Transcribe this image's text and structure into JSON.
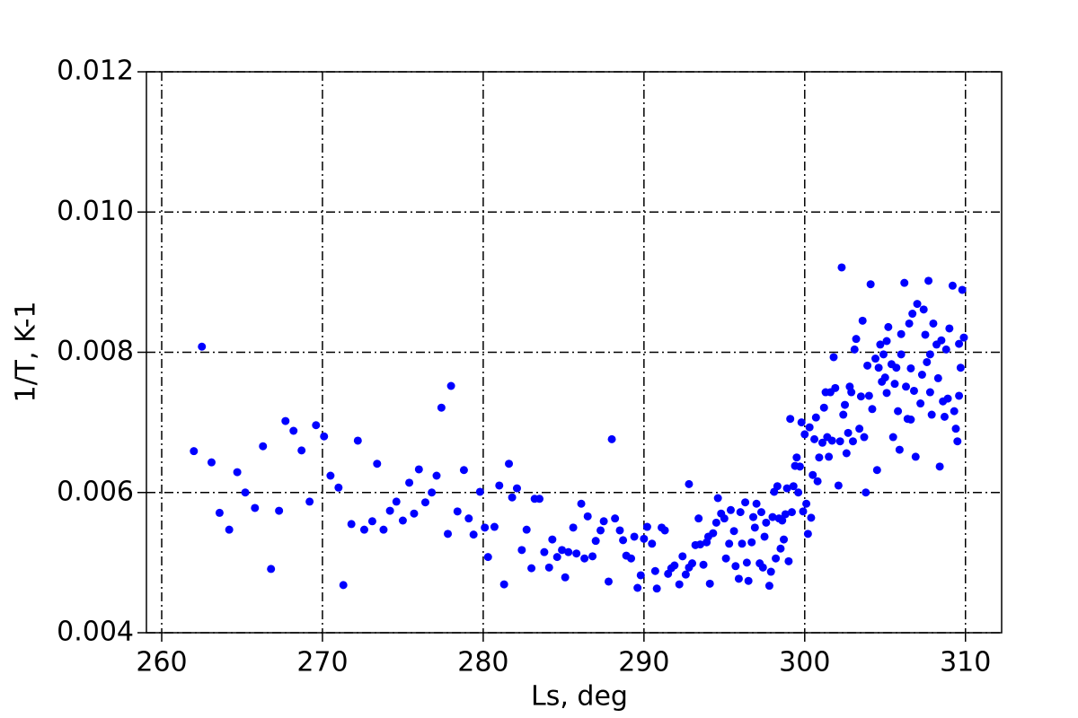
{
  "chart_data": {
    "type": "scatter",
    "xlabel": "Ls, deg",
    "ylabel": "1/T, K-1",
    "color": "#0000ff",
    "grid": true,
    "xlim": [
      259.05,
      312.25
    ],
    "ylim": [
      0.004,
      0.012
    ],
    "xticks": [
      260,
      270,
      280,
      290,
      300,
      310
    ],
    "yticks": [
      0.004,
      0.006,
      0.008,
      {
        "value": 0.01,
        "label": "0.010"
      },
      0.012
    ],
    "x": [
      262.0,
      262.5,
      263.1,
      263.6,
      264.2,
      264.7,
      265.2,
      265.8,
      266.3,
      266.8,
      267.3,
      267.7,
      268.2,
      268.7,
      269.2,
      269.6,
      270.1,
      270.5,
      271.0,
      271.3,
      271.8,
      272.2,
      272.6,
      273.1,
      273.4,
      273.8,
      274.2,
      274.6,
      275.0,
      275.4,
      275.7,
      276.0,
      276.4,
      276.8,
      277.1,
      277.4,
      277.8,
      278.0,
      278.4,
      278.8,
      279.1,
      279.4,
      279.8,
      280.1,
      280.3,
      280.7,
      281.0,
      281.3,
      281.6,
      281.8,
      282.1,
      282.4,
      282.7,
      283.0,
      283.2,
      283.5,
      283.8,
      284.1,
      284.3,
      284.6,
      284.9,
      285.1,
      285.3,
      285.6,
      285.8,
      286.1,
      286.3,
      286.5,
      286.8,
      287.0,
      287.3,
      287.5,
      287.8,
      288.0,
      288.2,
      288.5,
      288.7,
      288.9,
      289.2,
      289.4,
      289.6,
      289.8,
      290.0,
      290.2,
      290.5,
      290.7,
      290.8,
      291.1,
      291.3,
      291.5,
      291.7,
      291.9,
      292.2,
      292.4,
      292.6,
      292.8,
      292.8,
      293.0,
      293.2,
      293.4,
      293.5,
      293.7,
      293.9,
      294.0,
      294.1,
      294.3,
      294.5,
      294.6,
      294.8,
      295.0,
      295.1,
      295.3,
      295.4,
      295.6,
      295.7,
      295.9,
      296.0,
      296.1,
      296.3,
      296.4,
      296.5,
      296.7,
      296.8,
      296.9,
      297.0,
      297.2,
      297.3,
      297.4,
      297.5,
      297.6,
      297.8,
      297.9,
      298.0,
      298.1,
      298.2,
      298.3,
      298.4,
      298.5,
      298.6,
      298.7,
      298.8,
      298.9,
      299.0,
      299.1,
      299.2,
      299.3,
      299.4,
      299.5,
      299.6,
      299.7,
      299.8,
      299.9,
      300.0,
      300.1,
      300.2,
      300.3,
      300.4,
      300.5,
      300.6,
      300.7,
      300.8,
      300.9,
      301.1,
      301.2,
      301.3,
      301.4,
      301.5,
      301.6,
      301.7,
      301.8,
      301.9,
      302.1,
      302.2,
      302.3,
      302.4,
      302.5,
      302.6,
      302.7,
      302.8,
      302.9,
      303.0,
      303.1,
      303.2,
      303.4,
      303.5,
      303.6,
      303.7,
      303.8,
      303.9,
      304.0,
      304.1,
      304.2,
      304.4,
      304.5,
      304.6,
      304.7,
      304.8,
      304.9,
      305.0,
      305.1,
      305.2,
      305.4,
      305.5,
      305.6,
      305.7,
      305.8,
      305.9,
      306.0,
      306.2,
      306.3,
      306.4,
      306.5,
      306.6,
      306.7,
      306.8,
      306.9,
      307.0,
      307.2,
      307.3,
      307.4,
      307.5,
      307.6,
      307.7,
      307.8,
      307.9,
      308.0,
      308.2,
      308.3,
      308.4,
      308.5,
      308.6,
      308.7,
      308.8,
      308.9,
      309.0,
      309.2,
      309.3,
      309.4,
      309.5,
      309.6,
      309.7,
      309.8,
      309.9,
      309.6,
      307.8,
      306.6,
      305.1,
      306.0
    ],
    "values": [
      0.00659,
      0.00808,
      0.00643,
      0.00571,
      0.00547,
      0.00629,
      0.006,
      0.00578,
      0.00666,
      0.00491,
      0.00574,
      0.00702,
      0.00688,
      0.0066,
      0.00587,
      0.00696,
      0.0068,
      0.00624,
      0.00607,
      0.00468,
      0.00555,
      0.00674,
      0.00547,
      0.00559,
      0.00641,
      0.00547,
      0.00574,
      0.00587,
      0.0056,
      0.00614,
      0.0057,
      0.00633,
      0.00586,
      0.006,
      0.00624,
      0.00721,
      0.00541,
      0.00752,
      0.00573,
      0.00632,
      0.00563,
      0.0054,
      0.00601,
      0.0055,
      0.00508,
      0.00551,
      0.0061,
      0.00469,
      0.00641,
      0.00593,
      0.00606,
      0.00518,
      0.00547,
      0.00492,
      0.00591,
      0.00591,
      0.00515,
      0.00493,
      0.00533,
      0.00508,
      0.00518,
      0.00479,
      0.00515,
      0.0055,
      0.00513,
      0.00584,
      0.00506,
      0.00566,
      0.00509,
      0.00531,
      0.00546,
      0.00559,
      0.00473,
      0.00676,
      0.00563,
      0.00546,
      0.00532,
      0.0051,
      0.00506,
      0.00537,
      0.00464,
      0.00482,
      0.00534,
      0.00551,
      0.00527,
      0.00488,
      0.00463,
      0.0055,
      0.00546,
      0.00484,
      0.00492,
      0.00496,
      0.00469,
      0.00509,
      0.00483,
      0.00493,
      0.00612,
      0.00499,
      0.00525,
      0.00563,
      0.00526,
      0.00497,
      0.00529,
      0.00537,
      0.0047,
      0.00542,
      0.00557,
      0.00592,
      0.0057,
      0.00563,
      0.00506,
      0.00527,
      0.00575,
      0.00545,
      0.00495,
      0.00477,
      0.00572,
      0.00527,
      0.00586,
      0.005,
      0.00474,
      0.00529,
      0.00565,
      0.0055,
      0.00584,
      0.00499,
      0.00572,
      0.00493,
      0.00537,
      0.00557,
      0.00467,
      0.00487,
      0.00565,
      0.00601,
      0.00506,
      0.00609,
      0.00563,
      0.0052,
      0.0056,
      0.00533,
      0.00569,
      0.00606,
      0.00502,
      0.00705,
      0.00572,
      0.00609,
      0.00638,
      0.0065,
      0.006,
      0.00637,
      0.007,
      0.00573,
      0.00683,
      0.00584,
      0.00541,
      0.00693,
      0.00564,
      0.00625,
      0.00676,
      0.00707,
      0.00616,
      0.0065,
      0.00671,
      0.00721,
      0.00743,
      0.00679,
      0.00651,
      0.00743,
      0.00674,
      0.00793,
      0.00749,
      0.0061,
      0.00673,
      0.00921,
      0.00711,
      0.00725,
      0.00656,
      0.00685,
      0.00751,
      0.00743,
      0.00673,
      0.00804,
      0.00819,
      0.00691,
      0.00737,
      0.00845,
      0.00679,
      0.006,
      0.00781,
      0.00738,
      0.00897,
      0.00719,
      0.00791,
      0.00632,
      0.00778,
      0.00811,
      0.00758,
      0.00797,
      0.00764,
      0.00816,
      0.00836,
      0.00783,
      0.00679,
      0.00755,
      0.00778,
      0.00716,
      0.00661,
      0.00826,
      0.00899,
      0.00751,
      0.00705,
      0.00841,
      0.00777,
      0.00855,
      0.00745,
      0.00651,
      0.00869,
      0.00727,
      0.00768,
      0.00861,
      0.00825,
      0.00786,
      0.00902,
      0.00743,
      0.00711,
      0.00841,
      0.00811,
      0.00763,
      0.00637,
      0.00817,
      0.0073,
      0.00708,
      0.00804,
      0.00734,
      0.00834,
      0.00895,
      0.00716,
      0.00691,
      0.00673,
      0.00738,
      0.00778,
      0.00889,
      0.00821,
      0.00812,
      0.00797,
      0.00704,
      0.00742,
      0.00797
    ]
  }
}
